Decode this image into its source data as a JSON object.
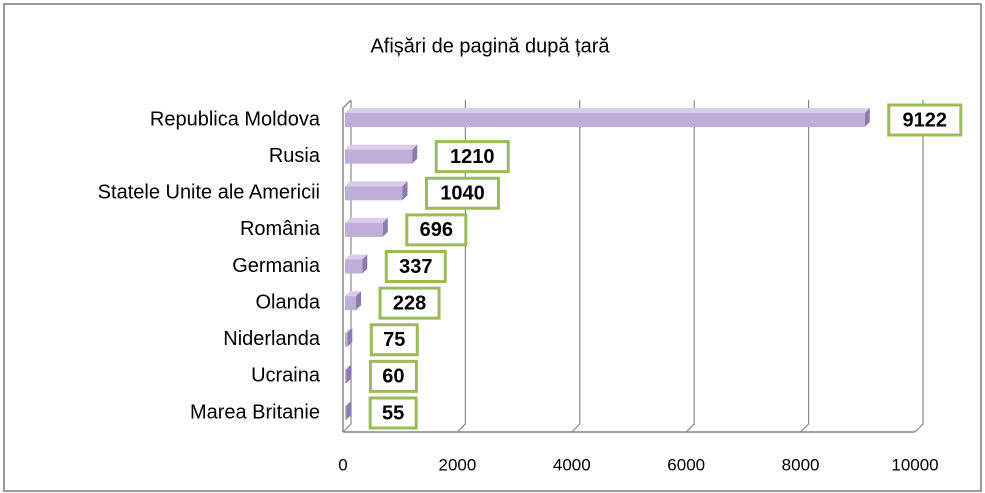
{
  "chart_data": {
    "type": "bar",
    "orientation": "horizontal",
    "title": "Afișări de pagină după țară",
    "categories": [
      "Republica Moldova",
      "Rusia",
      "Statele Unite ale Americii",
      "România",
      "Germania",
      "Olanda",
      "Niderlanda",
      "Ucraina",
      "Marea Britanie"
    ],
    "values": [
      9122,
      1210,
      1040,
      696,
      337,
      228,
      75,
      60,
      55
    ],
    "color": "#bfaed8",
    "side_color": "#8d7aae",
    "top_color": "#d9cdea",
    "label_border_color": "#9bbb59",
    "xlim": [
      0,
      10000
    ],
    "xticks": [
      0,
      2000,
      4000,
      6000,
      8000,
      10000
    ],
    "grid": true
  }
}
